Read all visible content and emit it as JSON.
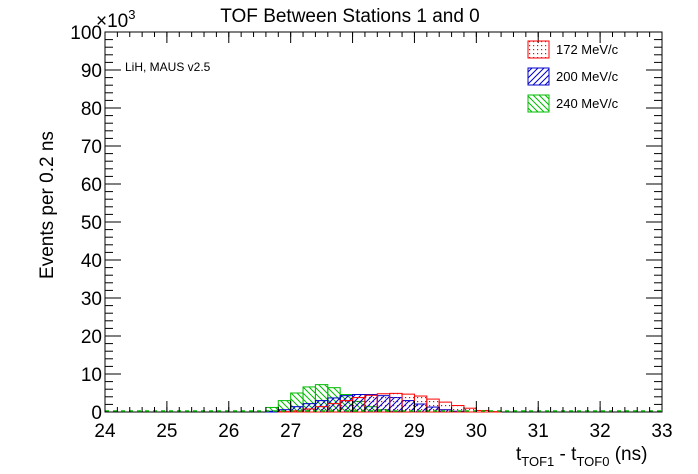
{
  "chart_data": {
    "type": "histogram",
    "title": "TOF Between Stations 1 and 0",
    "annotation": "LiH, MAUS v2.5",
    "xlabel": {
      "main": "t",
      "sub1": "TOF1",
      "mid": " - t",
      "sub2": "TOF0",
      "tail": " (ns)"
    },
    "ylabel": "Events per 0.2 ns",
    "y_exponent_base": "×10",
    "y_exponent_power": "3",
    "xlim": [
      24,
      33
    ],
    "ylim": [
      0,
      100
    ],
    "x_ticks": [
      24,
      25,
      26,
      27,
      28,
      29,
      30,
      31,
      32,
      33
    ],
    "y_ticks": [
      0,
      10,
      20,
      30,
      40,
      50,
      60,
      70,
      80,
      90,
      100
    ],
    "bin_width": 0.2,
    "bin_start": 26.6,
    "legend_position": "top-right",
    "series": [
      {
        "name": "172 MeV/c",
        "color": "#ff0000",
        "pattern": "dots",
        "values": [
          0.0,
          0.1,
          0.3,
          0.8,
          1.4,
          2.2,
          3.0,
          3.8,
          4.4,
          4.8,
          4.9,
          4.7,
          4.2,
          3.4,
          2.6,
          1.7,
          1.0,
          0.4,
          0.1
        ]
      },
      {
        "name": "200 MeV/c",
        "color": "#0000cc",
        "pattern": "hatch-forward",
        "values": [
          0.2,
          0.6,
          1.4,
          2.2,
          3.0,
          3.7,
          4.3,
          4.6,
          4.6,
          4.3,
          3.8,
          3.0,
          2.1,
          1.3,
          0.6,
          0.2,
          0.0,
          0.0,
          0.0
        ]
      },
      {
        "name": "240 MeV/c",
        "color": "#00bb00",
        "pattern": "hatch-backward",
        "values": [
          1.2,
          3.0,
          5.0,
          6.6,
          7.2,
          6.4,
          4.6,
          2.8,
          1.4,
          0.6,
          0.2,
          0.0,
          0.0,
          0.0,
          0.0,
          0.0,
          0.0,
          0.0,
          0.0
        ]
      }
    ]
  }
}
